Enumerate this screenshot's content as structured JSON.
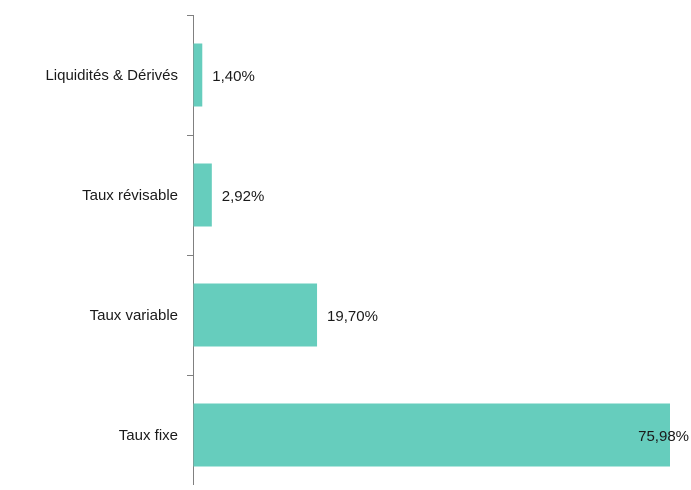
{
  "chart_data": {
    "type": "barh",
    "categories": [
      "Liquidités & Dérivés",
      "Taux révisable",
      "Taux variable",
      "Taux fixe"
    ],
    "values": [
      1.4,
      2.92,
      19.7,
      75.98
    ],
    "value_labels": [
      "1,40%",
      "2,92%",
      "19,70%",
      "75,98%"
    ],
    "color": "#66cdbd"
  }
}
